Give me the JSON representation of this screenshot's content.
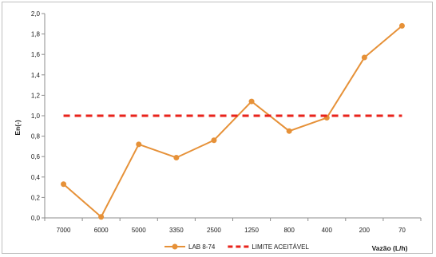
{
  "chart_data": {
    "type": "line",
    "title": "",
    "xlabel": "Vazão (L/h)",
    "ylabel": "En(-)",
    "categories": [
      "7000",
      "6000",
      "5000",
      "3350",
      "2500",
      "1250",
      "800",
      "400",
      "200",
      "70"
    ],
    "ylim": [
      0,
      2.0
    ],
    "yticks": [
      "0,0",
      "0,2",
      "0,4",
      "0,6",
      "0,8",
      "1,0",
      "1,2",
      "1,4",
      "1,6",
      "1,8",
      "2,0"
    ],
    "grid": false,
    "legend_position": "bottom",
    "series": [
      {
        "name": "LAB 8-74",
        "color": "#e69138",
        "style": "solid-markers",
        "values": [
          0.33,
          0.01,
          0.72,
          0.59,
          0.76,
          1.14,
          0.85,
          0.98,
          1.57,
          1.88
        ]
      },
      {
        "name": "LIMITE ACEITÁVEL",
        "color": "#e8231b",
        "style": "dashed",
        "values": [
          1.0,
          1.0,
          1.0,
          1.0,
          1.0,
          1.0,
          1.0,
          1.0,
          1.0,
          1.0
        ]
      }
    ]
  }
}
